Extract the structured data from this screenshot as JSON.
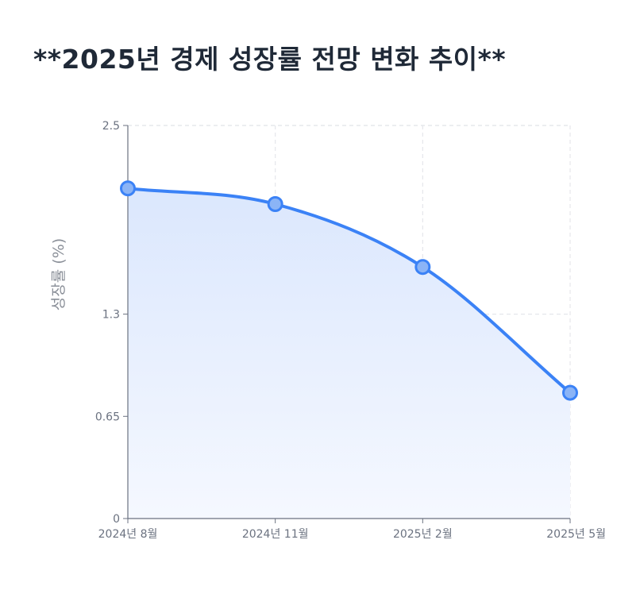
{
  "header": {
    "title": "**2025년 경제 성장률 전망 변화 추이**"
  },
  "chart_data": {
    "type": "line",
    "title": "**2025년 경제 성장률 전망 변화 추이**",
    "xlabel": "",
    "ylabel": "성장률 (%)",
    "categories": [
      "2024년 8월",
      "2024년 11월",
      "2025년 2월",
      "2025년 5월"
    ],
    "series": [
      {
        "values": [
          2.1,
          2.0,
          1.6,
          0.8
        ]
      }
    ],
    "yticks": [
      0,
      0.65,
      1.3,
      2.5
    ],
    "ytick_labels": [
      "0",
      "0.65",
      "1.3",
      "2.5"
    ],
    "ylim": [
      0,
      2.5
    ],
    "grid": true,
    "area_fill": true,
    "colors": {
      "line": "#3b82f6",
      "fill_top": "#dbe7fd",
      "grid": "#e5e7eb",
      "axis": "#6b7280"
    }
  }
}
